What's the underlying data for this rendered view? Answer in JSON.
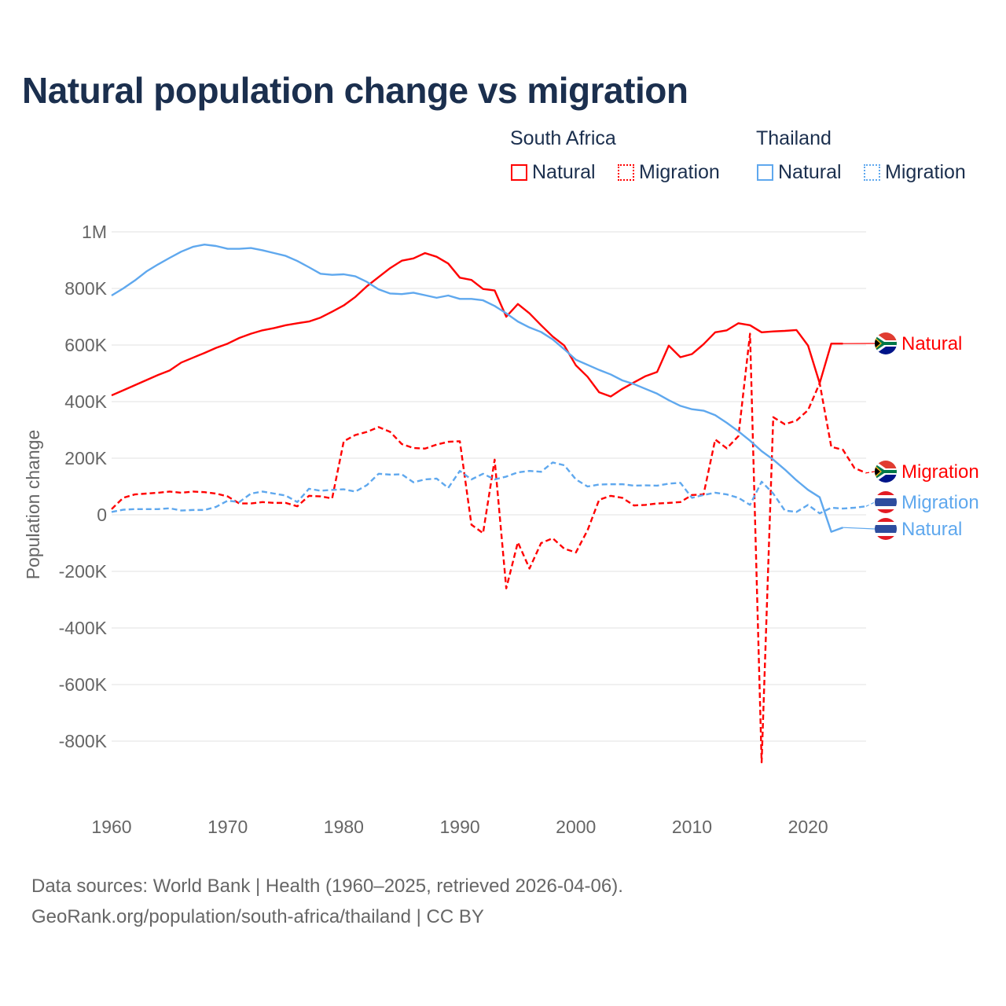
{
  "chart_data": {
    "type": "line",
    "title": "Natural population change vs migration",
    "ylabel": "Population change",
    "xlabel": "",
    "xlim": [
      1960,
      2025
    ],
    "ylim": [
      -1000000,
      1000000
    ],
    "x_ticks": [
      1960,
      1970,
      1980,
      1990,
      2000,
      2010,
      2020
    ],
    "x_tick_labels": [
      "1960",
      "1970",
      "1980",
      "1990",
      "2000",
      "2010",
      "2020"
    ],
    "y_ticks": [
      1000000,
      800000,
      600000,
      400000,
      200000,
      0,
      -200000,
      -400000,
      -600000,
      -800000
    ],
    "y_tick_labels": [
      "1M",
      "800K",
      "600K",
      "400K",
      "200K",
      "0",
      "-200K",
      "-400K",
      "-600K",
      "-800K"
    ],
    "grid": true,
    "legend_placement": "top-right",
    "legend_groups": [
      {
        "name": "South Africa",
        "items": [
          "Natural",
          "Migration"
        ]
      },
      {
        "name": "Thailand",
        "items": [
          "Natural",
          "Migration"
        ]
      }
    ],
    "series": [
      {
        "name": "South Africa Natural",
        "country": "South Africa",
        "kind": "Natural",
        "end_label": "Natural",
        "color": "#ff0000",
        "dashed": false,
        "start_year": 1960,
        "values": [
          422,
          440,
          458,
          476,
          494,
          510,
          538,
          555,
          572,
          590,
          605,
          625,
          640,
          652,
          660,
          670,
          677,
          683,
          697,
          718,
          740,
          770,
          808,
          840,
          872,
          898,
          906,
          925,
          912,
          888,
          838,
          830,
          798,
          793,
          700,
          745,
          712,
          670,
          630,
          598,
          528,
          488,
          433,
          418,
          445,
          468,
          490,
          505,
          598,
          557,
          568,
          603,
          645,
          652,
          677,
          670,
          645,
          648,
          650,
          653,
          598,
          465,
          605,
          605
        ]
      },
      {
        "name": "South Africa Migration",
        "country": "South Africa",
        "kind": "Migration",
        "end_label": "Migration",
        "color": "#ff0000",
        "dashed": true,
        "start_year": 1960,
        "values": [
          20,
          60,
          72,
          75,
          78,
          82,
          78,
          82,
          80,
          75,
          65,
          40,
          40,
          45,
          42,
          42,
          30,
          67,
          65,
          58,
          260,
          282,
          293,
          310,
          293,
          250,
          236,
          234,
          248,
          258,
          260,
          -35,
          -65,
          195,
          -260,
          -97,
          -190,
          -100,
          -83,
          -120,
          -133,
          -55,
          53,
          67,
          60,
          33,
          35,
          40,
          42,
          45,
          70,
          72,
          266,
          235,
          278,
          640,
          -875,
          345,
          320,
          333,
          370,
          465,
          240,
          230,
          165,
          148
        ]
      },
      {
        "name": "Thailand Migration",
        "country": "Thailand",
        "kind": "Migration",
        "end_label": "Migration",
        "color": "#5fa8ee",
        "dashed": true,
        "start_year": 1960,
        "values": [
          10,
          18,
          20,
          20,
          20,
          23,
          15,
          17,
          17,
          28,
          50,
          45,
          75,
          82,
          75,
          68,
          45,
          92,
          85,
          88,
          90,
          82,
          105,
          145,
          142,
          143,
          115,
          125,
          128,
          95,
          155,
          125,
          145,
          125,
          135,
          150,
          155,
          152,
          185,
          175,
          125,
          100,
          107,
          108,
          108,
          103,
          104,
          103,
          110,
          113,
          60,
          70,
          78,
          72,
          60,
          35,
          117,
          75,
          15,
          10,
          35,
          5,
          25,
          22,
          25,
          30
        ]
      },
      {
        "name": "Thailand Natural",
        "country": "Thailand",
        "kind": "Natural",
        "end_label": "Natural",
        "color": "#5fa8ee",
        "dashed": false,
        "start_year": 1960,
        "values": [
          775,
          800,
          828,
          860,
          885,
          908,
          930,
          947,
          955,
          950,
          940,
          940,
          943,
          935,
          925,
          915,
          897,
          875,
          852,
          848,
          850,
          843,
          823,
          797,
          782,
          780,
          785,
          776,
          767,
          775,
          763,
          763,
          758,
          738,
          712,
          683,
          662,
          646,
          620,
          585,
          548,
          530,
          512,
          496,
          475,
          462,
          445,
          428,
          405,
          385,
          373,
          368,
          352,
          325,
          295,
          262,
          225,
          195,
          160,
          122,
          88,
          62,
          -60,
          -45
        ]
      }
    ],
    "value_unit": "thousands"
  },
  "legend": {
    "group_sa": "South Africa",
    "group_th": "Thailand",
    "natural": "Natural",
    "migration": "Migration"
  },
  "footer": {
    "line1": "Data sources: World Bank | Health (1960–2025, retrieved 2026-04-06).",
    "line2": "GeoRank.org/population/south-africa/thailand | CC BY"
  }
}
